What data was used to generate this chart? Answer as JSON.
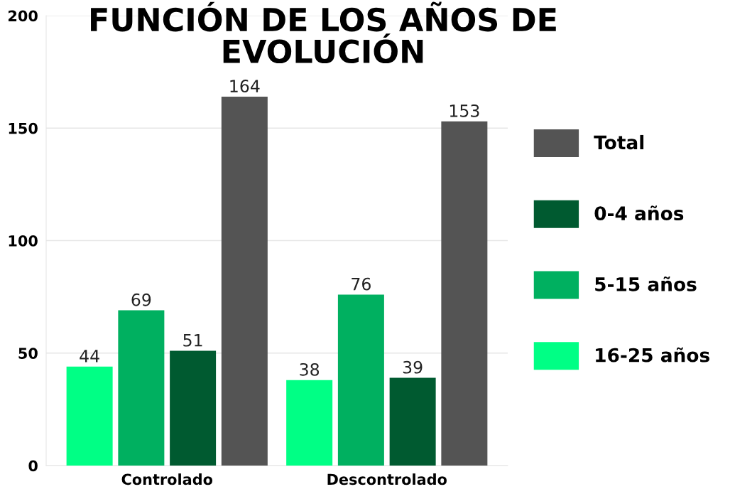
{
  "chart_data": {
    "type": "bar",
    "title": "FUNCIÓN DE LOS AÑOS DE\nEVOLUCIÓN",
    "categories": [
      "Controlado",
      "Descontrolado"
    ],
    "series": [
      {
        "name": "16-25 años",
        "color": "#00ff85",
        "values": [
          44,
          38
        ]
      },
      {
        "name": "5-15 años",
        "color": "#00b060",
        "values": [
          69,
          76
        ]
      },
      {
        "name": "0-4 años",
        "color": "#005a30",
        "values": [
          51,
          39
        ]
      },
      {
        "name": "Total",
        "color": "#545454",
        "values": [
          164,
          153
        ]
      }
    ],
    "data_labels": true,
    "ylim": [
      0,
      200
    ],
    "yticks": [
      0,
      50,
      100,
      150,
      200
    ],
    "grid": "y",
    "legend": "right"
  }
}
